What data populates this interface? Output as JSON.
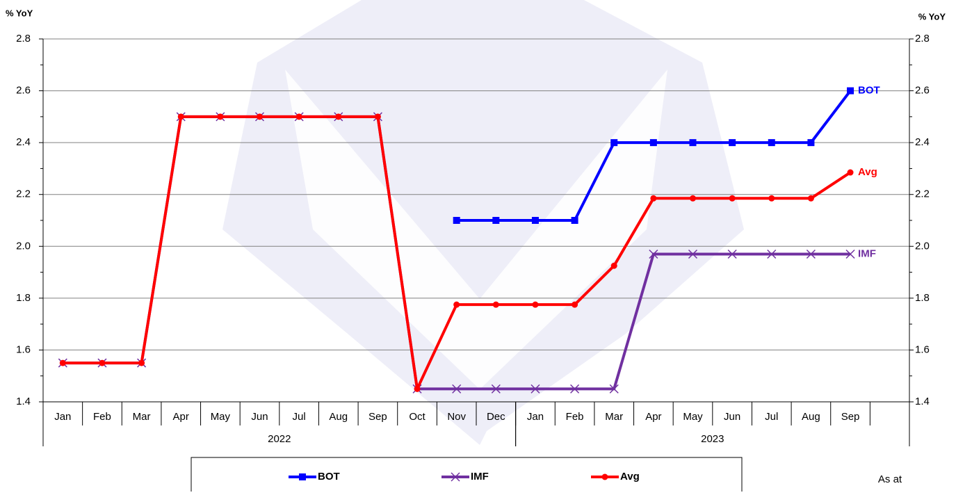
{
  "chart_data": {
    "type": "line",
    "y_label": "% YoY",
    "y2_label": "% YoY",
    "categories": [
      "Jan",
      "Feb",
      "Mar",
      "Apr",
      "May",
      "Jun",
      "Jul",
      "Aug",
      "Sep",
      "Oct",
      "Nov",
      "Dec",
      "Jan",
      "Feb",
      "Mar",
      "Apr",
      "May",
      "Jun",
      "Jul",
      "Aug",
      "Sep",
      null
    ],
    "groups": [
      {
        "label": "2022",
        "count": 12
      },
      {
        "label": "2023",
        "count": 10
      }
    ],
    "series": [
      {
        "name": "BOT",
        "color": "#0000ff",
        "marker": "square",
        "values": [
          null,
          null,
          null,
          null,
          null,
          null,
          null,
          null,
          null,
          null,
          2.1,
          2.1,
          2.1,
          2.1,
          2.4,
          2.4,
          2.4,
          2.4,
          2.4,
          2.4,
          2.6,
          null
        ]
      },
      {
        "name": "IMF",
        "color": "#7030a0",
        "marker": "x",
        "values": [
          1.55,
          1.55,
          1.55,
          2.5,
          2.5,
          2.5,
          2.5,
          2.5,
          2.5,
          1.45,
          1.45,
          1.45,
          1.45,
          1.45,
          1.45,
          1.97,
          1.97,
          1.97,
          1.97,
          1.97,
          1.97,
          null
        ]
      },
      {
        "name": "Avg",
        "color": "#ff0000",
        "marker": "circle",
        "values": [
          1.55,
          1.55,
          1.55,
          2.5,
          2.5,
          2.5,
          2.5,
          2.5,
          2.5,
          1.45,
          1.775,
          1.775,
          1.775,
          1.775,
          1.925,
          2.185,
          2.185,
          2.185,
          2.185,
          2.185,
          2.285,
          null
        ]
      }
    ],
    "ylim": [
      1.4,
      2.8
    ],
    "yticks": [
      1.4,
      1.6,
      1.8,
      {
        "value": 2,
        "label": "2.0"
      },
      2.2,
      2.4,
      2.6,
      2.8
    ],
    "y2lim": [
      1.4,
      2.8
    ],
    "y2ticks": [
      1.4,
      1.6,
      1.8,
      {
        "value": 2,
        "label": "2.0"
      },
      2.2,
      2.4,
      2.6,
      2.8
    ],
    "grid": true,
    "legend": "bottom",
    "annotation": "As at"
  }
}
